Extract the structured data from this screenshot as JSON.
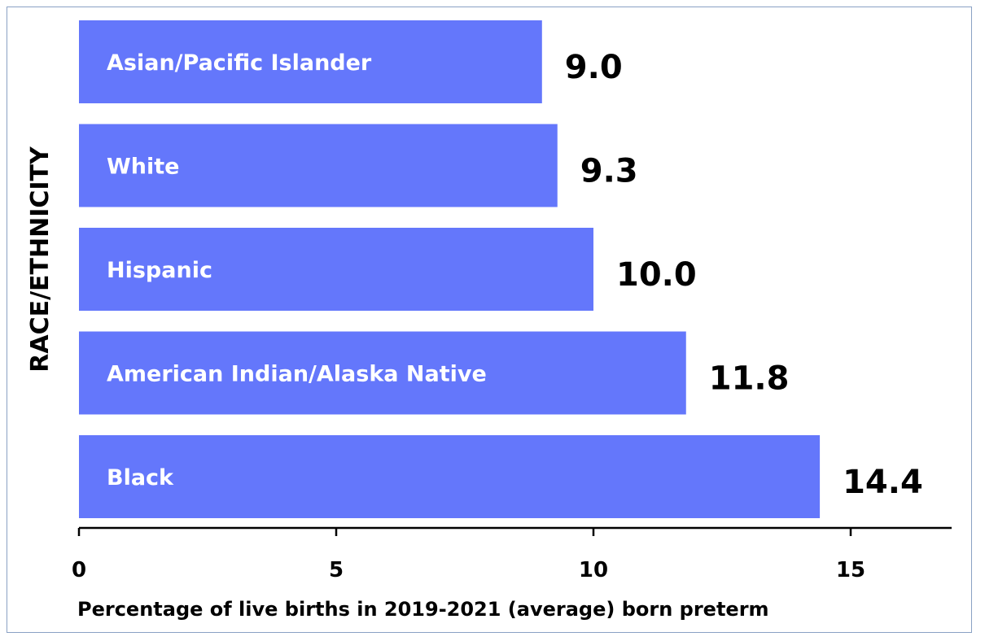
{
  "chart_data": {
    "type": "bar",
    "orientation": "horizontal",
    "categories": [
      "Asian/Pacific Islander",
      "White",
      "Hispanic",
      "American Indian/Alaska Native",
      "Black"
    ],
    "values": [
      9.0,
      9.3,
      10.0,
      11.8,
      14.4
    ],
    "value_labels": [
      "9.0",
      "9.3",
      "10.0",
      "11.8",
      "14.4"
    ],
    "xlabel": "Percentage of live births in 2019-2021 (average) born preterm",
    "ylabel": "RACE/ETHNICITY",
    "xlim": [
      0,
      17
    ],
    "xticks": [
      0,
      5,
      10,
      15
    ],
    "xtick_labels": [
      "0",
      "5",
      "10",
      "15"
    ],
    "bar_color": "#6477fb",
    "grid": false,
    "legend": "none"
  }
}
